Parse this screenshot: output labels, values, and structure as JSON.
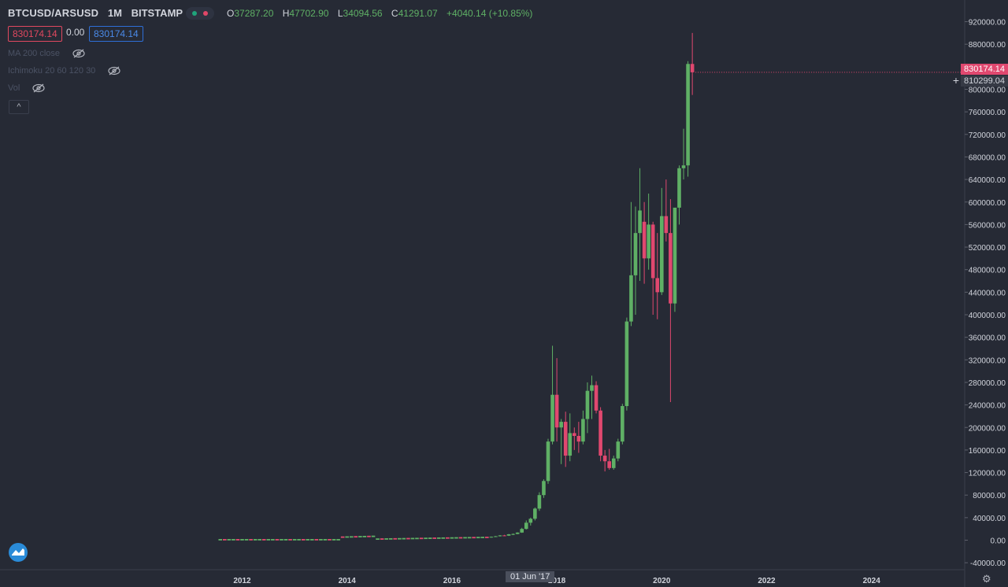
{
  "symbol": "BTCUSD/ARSUSD",
  "timeframe": "1M",
  "exchange": "BITSTAMP",
  "ohlc": {
    "O": "37287.20",
    "H": "47702.90",
    "L": "34094.56",
    "C": "41291.07",
    "change": "+4040.14 (+10.85%)"
  },
  "bid_label": "830174.14",
  "spread_label": "0.00",
  "ask_label": "830174.14",
  "indicators": [
    "MA 200 close",
    "Ichimoku 20 60 120 30",
    "Vol"
  ],
  "collapse_label": "^",
  "last_price_tag": "830174.14",
  "crosshair_tag": "810299.04",
  "crosshair_date": "01 Jun '17",
  "colors": {
    "up": "#5fb065",
    "down": "#e0486f",
    "background": "#262a35",
    "axis_text": "#d1d4dc"
  },
  "chart_data": {
    "type": "candlestick",
    "xlabel": "",
    "ylabel": "",
    "x_ticks": [
      "2012",
      "2014",
      "2016",
      "2018",
      "2020",
      "2022",
      "2024"
    ],
    "y_ticks": [
      "920000.00",
      "880000.00",
      "840000.00",
      "800000.00",
      "760000.00",
      "720000.00",
      "680000.00",
      "640000.00",
      "600000.00",
      "560000.00",
      "520000.00",
      "480000.00",
      "440000.00",
      "400000.00",
      "360000.00",
      "320000.00",
      "280000.00",
      "240000.00",
      "200000.00",
      "160000.00",
      "120000.00",
      "80000.00",
      "40000.00",
      "0.00",
      "-40000.00"
    ],
    "ylim": [
      -40000,
      920000
    ],
    "candles": [
      {
        "t": "2016-10",
        "o": 5000,
        "h": 6500,
        "l": 4500,
        "c": 6000
      },
      {
        "t": "2016-11",
        "o": 6000,
        "h": 7500,
        "l": 5500,
        "c": 7000
      },
      {
        "t": "2016-12",
        "o": 7000,
        "h": 9000,
        "l": 6500,
        "c": 8500
      },
      {
        "t": "2017-01",
        "o": 8500,
        "h": 9500,
        "l": 7000,
        "c": 8000
      },
      {
        "t": "2017-02",
        "o": 8000,
        "h": 11000,
        "l": 7500,
        "c": 10500
      },
      {
        "t": "2017-03",
        "o": 10500,
        "h": 12000,
        "l": 9000,
        "c": 11000
      },
      {
        "t": "2017-04",
        "o": 11000,
        "h": 14000,
        "l": 10500,
        "c": 13500
      },
      {
        "t": "2017-05",
        "o": 13500,
        "h": 22000,
        "l": 13000,
        "c": 20000
      },
      {
        "t": "2017-06",
        "o": 20000,
        "h": 35000,
        "l": 19000,
        "c": 31000
      },
      {
        "t": "2017-07",
        "o": 31000,
        "h": 40000,
        "l": 26000,
        "c": 38000
      },
      {
        "t": "2017-08",
        "o": 38000,
        "h": 58000,
        "l": 35000,
        "c": 56000
      },
      {
        "t": "2017-09",
        "o": 56000,
        "h": 85000,
        "l": 52000,
        "c": 80000
      },
      {
        "t": "2017-10",
        "o": 80000,
        "h": 108000,
        "l": 75000,
        "c": 105000
      },
      {
        "t": "2017-11",
        "o": 105000,
        "h": 180000,
        "l": 100000,
        "c": 175000
      },
      {
        "t": "2017-12",
        "o": 175000,
        "h": 345000,
        "l": 170000,
        "c": 258000
      },
      {
        "t": "2018-01",
        "o": 258000,
        "h": 323000,
        "l": 175000,
        "c": 200000
      },
      {
        "t": "2018-02",
        "o": 200000,
        "h": 215000,
        "l": 135000,
        "c": 210000
      },
      {
        "t": "2018-03",
        "o": 210000,
        "h": 228000,
        "l": 130000,
        "c": 150000
      },
      {
        "t": "2018-04",
        "o": 150000,
        "h": 225000,
        "l": 140000,
        "c": 190000
      },
      {
        "t": "2018-05",
        "o": 190000,
        "h": 200000,
        "l": 160000,
        "c": 185000
      },
      {
        "t": "2018-06",
        "o": 185000,
        "h": 210000,
        "l": 155000,
        "c": 175000
      },
      {
        "t": "2018-07",
        "o": 175000,
        "h": 230000,
        "l": 170000,
        "c": 215000
      },
      {
        "t": "2018-08",
        "o": 215000,
        "h": 280000,
        "l": 190000,
        "c": 265000
      },
      {
        "t": "2018-09",
        "o": 265000,
        "h": 292000,
        "l": 215000,
        "c": 275000
      },
      {
        "t": "2018-10",
        "o": 275000,
        "h": 282000,
        "l": 225000,
        "c": 230000
      },
      {
        "t": "2018-11",
        "o": 230000,
        "h": 236000,
        "l": 140000,
        "c": 150000
      },
      {
        "t": "2018-12",
        "o": 150000,
        "h": 160000,
        "l": 122000,
        "c": 140000
      },
      {
        "t": "2019-01",
        "o": 140000,
        "h": 162000,
        "l": 125000,
        "c": 128000
      },
      {
        "t": "2019-02",
        "o": 128000,
        "h": 150000,
        "l": 125000,
        "c": 145000
      },
      {
        "t": "2019-03",
        "o": 145000,
        "h": 180000,
        "l": 140000,
        "c": 175000
      },
      {
        "t": "2019-04",
        "o": 175000,
        "h": 242000,
        "l": 170000,
        "c": 238000
      },
      {
        "t": "2019-05",
        "o": 238000,
        "h": 395000,
        "l": 230000,
        "c": 388000
      },
      {
        "t": "2019-06",
        "o": 388000,
        "h": 600000,
        "l": 380000,
        "c": 470000
      },
      {
        "t": "2019-07",
        "o": 470000,
        "h": 592000,
        "l": 400000,
        "c": 545000
      },
      {
        "t": "2019-08",
        "o": 545000,
        "h": 660000,
        "l": 460000,
        "c": 585000
      },
      {
        "t": "2019-09",
        "o": 565000,
        "h": 600000,
        "l": 455000,
        "c": 500000
      },
      {
        "t": "2019-10",
        "o": 500000,
        "h": 615000,
        "l": 480000,
        "c": 560000
      },
      {
        "t": "2019-11",
        "o": 560000,
        "h": 565000,
        "l": 400000,
        "c": 465000
      },
      {
        "t": "2019-12",
        "o": 465000,
        "h": 545000,
        "l": 392000,
        "c": 440000
      },
      {
        "t": "2020-01",
        "o": 440000,
        "h": 625000,
        "l": 435000,
        "c": 575000
      },
      {
        "t": "2020-02",
        "o": 575000,
        "h": 640000,
        "l": 530000,
        "c": 545000
      },
      {
        "t": "2020-03",
        "o": 545000,
        "h": 605000,
        "l": 245000,
        "c": 420000
      },
      {
        "t": "2020-04",
        "o": 420000,
        "h": 585000,
        "l": 405000,
        "c": 590000
      },
      {
        "t": "2020-05",
        "o": 590000,
        "h": 665000,
        "l": 560000,
        "c": 660000
      },
      {
        "t": "2020-06",
        "o": 660000,
        "h": 730000,
        "l": 640000,
        "c": 665000
      },
      {
        "t": "2020-07",
        "o": 665000,
        "h": 850000,
        "l": 645000,
        "c": 845000
      },
      {
        "t": "2020-08",
        "o": 845000,
        "h": 900000,
        "l": 790000,
        "c": 830174
      }
    ]
  }
}
